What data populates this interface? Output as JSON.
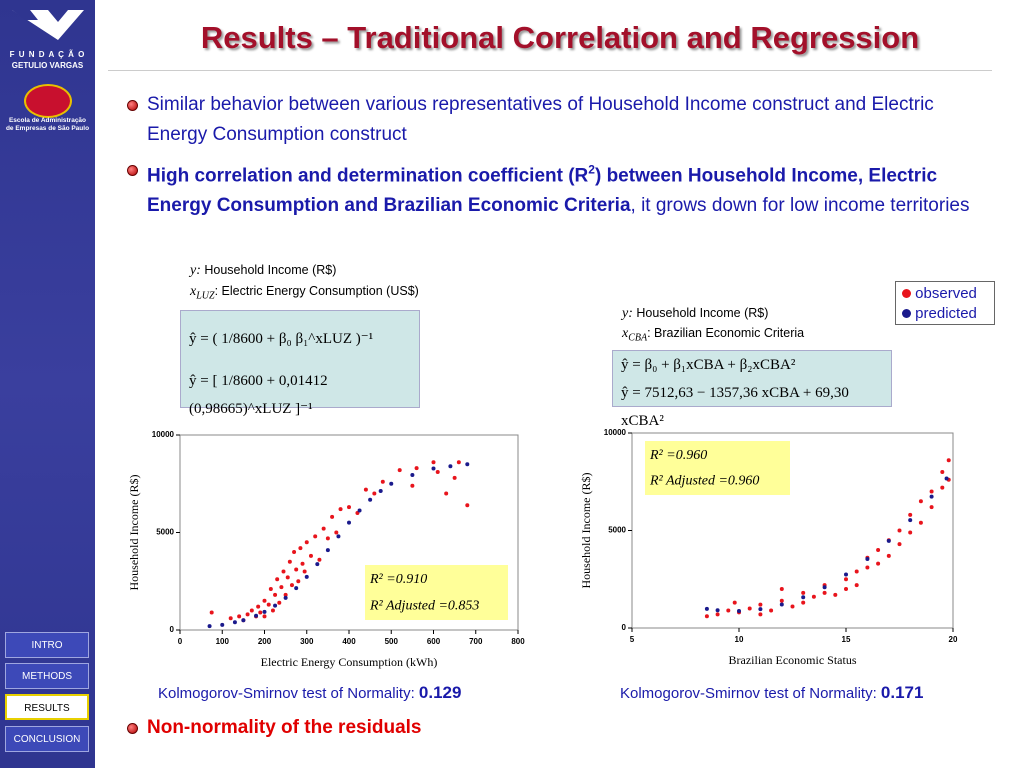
{
  "sidebar": {
    "org_line1": "F U N D A Ç Ã O",
    "org_line2": "GETULIO VARGAS",
    "school_line1": "Escola de Administração",
    "school_line2": "de Empresas de São Paulo",
    "nav": [
      "INTRO",
      "METHODS",
      "RESULTS",
      "CONCLUSION"
    ],
    "active_nav": 2
  },
  "title": "Results – Traditional Correlation and Regression",
  "bullets": [
    {
      "text": "Similar behavior between various representatives of Household Income construct and Electric Energy Consumption construct"
    },
    {
      "bold": "High correlation and determination coefficient (R",
      "sup": "2",
      "bold2": ") between Household Income, Electric Energy Consumption and Brazilian Economic Criteria",
      "rest": ", it grows down for low income territories"
    },
    {
      "text": "Non-normality of the residuals"
    }
  ],
  "models": [
    {
      "y_var": "y:",
      "y_desc": " Household Income (R$)",
      "x_var": "x",
      "x_sub": "LUZ",
      "x_desc": ": Electric Energy Consumption (US$)",
      "equations": [
        "ŷ = ( 1/8600 + β₀ β₁^xLUZ )⁻¹",
        "ŷ = [ 1/8600 + 0,01412 (0,98665)^xLUZ ]⁻¹"
      ]
    },
    {
      "y_var": "y:",
      "y_desc": " Household Income (R$)",
      "x_var": "x",
      "x_sub": "CBA",
      "x_desc": ": Brazilian Economic Criteria",
      "equations": [
        "ŷ = β₀ + β₁xCBA + β₂xCBA²",
        "ŷ = 7512,63 − 1357,36 xCBA + 69,30 xCBA²"
      ]
    }
  ],
  "chart_data": [
    {
      "type": "scatter",
      "xlabel": "Electric Energy Consumption (kWh)",
      "ylabel": "Household Income (R$)",
      "xlim": [
        0,
        800
      ],
      "xticks": [
        0,
        100,
        200,
        300,
        400,
        500,
        600,
        700,
        800
      ],
      "ylim": [
        0,
        10000
      ],
      "yticks": [
        0,
        5000,
        10000
      ],
      "r2": "R² =0.910",
      "r2_adjusted": "R² Adjusted =0.853",
      "ks_label": "Kolmogorov-Smirnov test of Normality: ",
      "ks_value": 0.129,
      "series": [
        {
          "color": "#e8141c",
          "x": [
            75,
            120,
            140,
            150,
            160,
            170,
            180,
            185,
            190,
            200,
            200,
            210,
            215,
            220,
            225,
            230,
            235,
            240,
            245,
            250,
            255,
            260,
            265,
            270,
            275,
            280,
            285,
            290,
            295,
            300,
            310,
            320,
            330,
            340,
            350,
            360,
            370,
            380,
            400,
            420,
            440,
            460,
            480,
            520,
            550,
            560,
            600,
            610,
            630,
            650,
            660,
            680
          ],
          "values": [
            900,
            600,
            700,
            500,
            800,
            1000,
            700,
            1200,
            900,
            1500,
            700,
            1300,
            2100,
            1000,
            1800,
            2600,
            1400,
            2200,
            3000,
            1800,
            2700,
            3500,
            2300,
            4000,
            3100,
            2500,
            4200,
            3400,
            3000,
            4500,
            3800,
            4800,
            3600,
            5200,
            4700,
            5800,
            5000,
            6200,
            6300,
            6000,
            7200,
            7000,
            7600,
            8200,
            7400,
            8300,
            8600,
            8100,
            7000,
            7800,
            8600,
            6400
          ]
        },
        {
          "color": "#1a1a8c",
          "x": [
            70,
            100,
            130,
            150,
            180,
            200,
            225,
            250,
            275,
            300,
            325,
            350,
            375,
            400,
            425,
            450,
            475,
            500,
            550,
            600,
            640,
            680
          ],
          "values": [
            200,
            263,
            400,
            501,
            730,
            928,
            1250,
            1650,
            2150,
            2727,
            3380,
            4094,
            4800,
            5507,
            6130,
            6681,
            7130,
            7500,
            7950,
            8283,
            8400,
            8500
          ]
        }
      ]
    },
    {
      "type": "scatter",
      "xlabel": "Brazilian Economic Status",
      "ylabel": "Household Income (R$)",
      "xlim": [
        5,
        20
      ],
      "xticks": [
        5,
        10,
        15,
        20
      ],
      "ylim": [
        0,
        10000
      ],
      "yticks": [
        0,
        5000,
        10000
      ],
      "r2": "R² =0.960",
      "r2_adjusted": "R² Adjusted =0.960",
      "ks_label": "Kolmogorov-Smirnov test of Normality: ",
      "ks_value": 0.171,
      "series": [
        {
          "name": "observed",
          "color": "#e8141c",
          "x": [
            8.5,
            9,
            9.5,
            10,
            10.5,
            11,
            11,
            11.5,
            12,
            12.5,
            13,
            13,
            13.5,
            14,
            14,
            14.5,
            15,
            15,
            15.5,
            15.5,
            16,
            16,
            16.5,
            16.5,
            17,
            17,
            17.5,
            17.5,
            18,
            18,
            18.5,
            18.5,
            19,
            19,
            19.5,
            19.5,
            19.8,
            19.8,
            9.8,
            12
          ],
          "values": [
            600,
            700,
            900,
            800,
            1000,
            1200,
            700,
            900,
            1400,
            1100,
            1800,
            1300,
            1600,
            2200,
            1800,
            1700,
            2500,
            2000,
            2900,
            2200,
            3600,
            3100,
            3300,
            4000,
            4500,
            3700,
            4300,
            5000,
            5800,
            4900,
            6500,
            5400,
            7000,
            6200,
            8000,
            7200,
            8600,
            7600,
            1300,
            2000
          ]
        },
        {
          "name": "predicted",
          "color": "#1a1a8c",
          "x": [
            8.5,
            9,
            10,
            11,
            12,
            13,
            14,
            15,
            16,
            17,
            18,
            19,
            19.7
          ],
          "values": [
            982,
            910,
            869,
            967,
            1203,
            1579,
            2092,
            2745,
            3536,
            4465,
            5533,
            6740,
            7667
          ]
        }
      ]
    }
  ]
}
